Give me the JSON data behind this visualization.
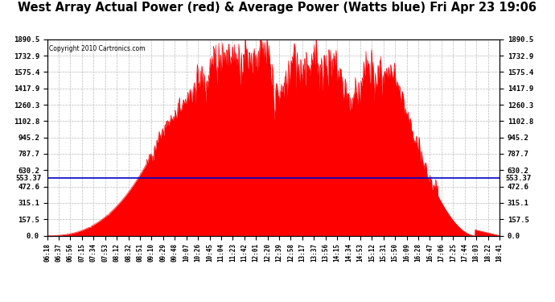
{
  "title": "West Array Actual Power (red) & Average Power (Watts blue) Fri Apr 23 19:06",
  "copyright": "Copyright 2010 Cartronics.com",
  "ymin": 0.0,
  "ymax": 1890.5,
  "yticks": [
    0.0,
    157.5,
    315.1,
    472.6,
    630.2,
    787.7,
    945.2,
    1102.8,
    1260.3,
    1417.9,
    1575.4,
    1732.9,
    1890.5
  ],
  "avg_line_value": 553.37,
  "avg_line_label": "553.37",
  "bg_color": "#ffffff",
  "plot_bg_color": "#ffffff",
  "grid_color": "#bbbbbb",
  "fill_color": "#ff0000",
  "line_color": "#ff0000",
  "avg_line_color": "#0000cc",
  "xtick_labels": [
    "06:18",
    "06:37",
    "06:56",
    "07:15",
    "07:34",
    "07:53",
    "08:12",
    "08:32",
    "08:51",
    "09:10",
    "09:29",
    "09:48",
    "10:07",
    "10:26",
    "10:45",
    "11:04",
    "11:23",
    "11:42",
    "12:01",
    "12:20",
    "12:39",
    "12:58",
    "13:17",
    "13:37",
    "13:56",
    "14:15",
    "14:34",
    "14:53",
    "15:12",
    "15:31",
    "15:50",
    "16:09",
    "16:28",
    "16:47",
    "17:06",
    "17:25",
    "17:44",
    "18:03",
    "18:22",
    "18:41"
  ]
}
